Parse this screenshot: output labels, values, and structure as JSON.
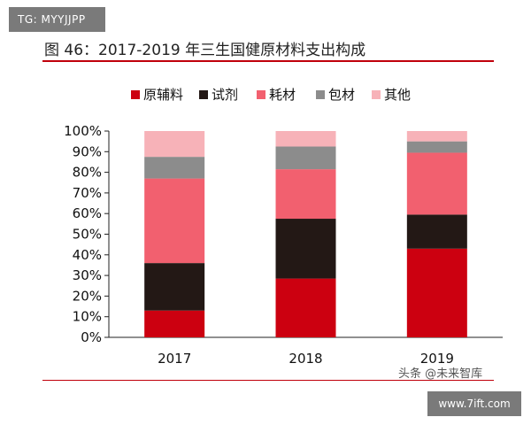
{
  "badge": {
    "text": "TG: MYYJJPP"
  },
  "header": {
    "title": "图 46：2017-2019 年三生国健原材料支出构成"
  },
  "watermark": {
    "text": "头条 @未来智库",
    "site": "www.7ift.com"
  },
  "chart_data": {
    "type": "bar",
    "stacked": true,
    "categories": [
      "2017",
      "2018",
      "2019"
    ],
    "series": [
      {
        "name": "原辅料",
        "values": [
          13,
          28.5,
          43
        ],
        "color": "#cc0010"
      },
      {
        "name": "试剂",
        "values": [
          23,
          29,
          16.5
        ],
        "color": "#231815"
      },
      {
        "name": "耗材",
        "values": [
          41,
          24,
          30
        ],
        "color": "#f2606f"
      },
      {
        "name": "包材",
        "values": [
          10.5,
          11,
          5.5
        ],
        "color": "#8c8c8c"
      },
      {
        "name": "其他",
        "values": [
          12.5,
          7.5,
          5
        ],
        "color": "#f7b2b8"
      }
    ],
    "yticks": [
      "0%",
      "10%",
      "20%",
      "30%",
      "40%",
      "50%",
      "60%",
      "70%",
      "80%",
      "90%",
      "100%"
    ],
    "ylim": [
      0,
      100
    ],
    "legend_position": "top",
    "grid": false
  }
}
